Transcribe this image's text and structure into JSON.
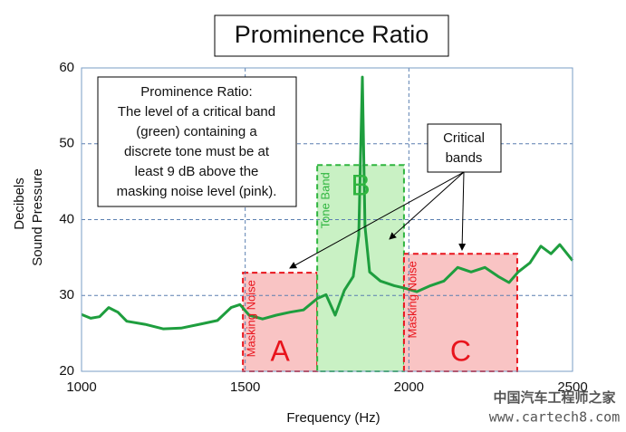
{
  "chart_data": {
    "type": "line",
    "title": "Prominence Ratio",
    "xlabel": "Frequency (Hz)",
    "ylabel": [
      "Decibels",
      "Sound Pressure"
    ],
    "xlim": [
      1000,
      2500
    ],
    "xticks": [
      1000,
      1500,
      2000,
      2500
    ],
    "ylim": [
      20,
      60
    ],
    "yticks": [
      20,
      30,
      40,
      50,
      60
    ],
    "grid": true,
    "series": [
      {
        "color": "#1e9e3e",
        "x": [
          1000,
          1028,
          1055,
          1083,
          1111,
          1138,
          1194,
          1249,
          1304,
          1360,
          1415,
          1457,
          1484,
          1512,
          1553,
          1595,
          1637,
          1678,
          1720,
          1747,
          1775,
          1803,
          1830,
          1847,
          1858,
          1866,
          1880,
          1913,
          1955,
          1985,
          2024,
          2066,
          2107,
          2149,
          2190,
          2232,
          2273,
          2306,
          2334,
          2370,
          2403,
          2434,
          2461,
          2500
        ],
        "values": [
          27.5,
          27,
          27.2,
          28.4,
          27.8,
          26.6,
          26.2,
          25.6,
          25.7,
          26.2,
          26.7,
          28.4,
          28.8,
          27.4,
          26.9,
          27.4,
          27.8,
          28.1,
          29.6,
          30.1,
          27.4,
          30.7,
          32.5,
          37.9,
          58.8,
          39.1,
          33.1,
          31.9,
          31.3,
          31,
          30.5,
          31.3,
          31.9,
          33.7,
          33.1,
          33.7,
          32.5,
          31.7,
          33.1,
          34.3,
          36.5,
          35.5,
          36.7,
          34.6
        ]
      }
    ],
    "bands": [
      {
        "label": "Masking Noise",
        "letter": "A",
        "x": [
          1493,
          1720
        ],
        "level": 33,
        "color": "#e8141c",
        "fill": "#f9c4c4"
      },
      {
        "label": "Tone Band",
        "letter": "B",
        "x": [
          1720,
          1985
        ],
        "level": 47.2,
        "color": "#2fb53f",
        "fill": "#c9f1c4"
      },
      {
        "label": "Masking Noise",
        "letter": "C",
        "x": [
          1985,
          2331
        ],
        "level": 35.5,
        "color": "#e8141c",
        "fill": "#f9c4c4"
      }
    ],
    "note": [
      "Prominence Ratio:",
      "The level of a critical band",
      "(green) containing a",
      "discrete tone must be at",
      "least 9 dB above the",
      "masking noise level (pink)."
    ],
    "callout": [
      "Critical",
      "bands"
    ],
    "watermark": [
      "中国汽车工程师之家",
      "www.cartech8.com"
    ]
  }
}
